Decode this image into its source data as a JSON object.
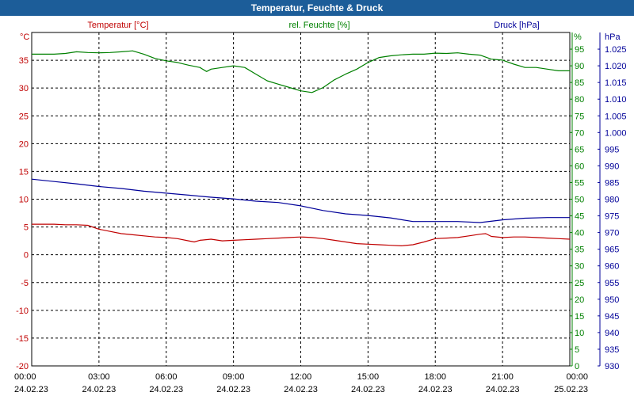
{
  "title": "Temperatur, Feuchte & Druck",
  "chart_data": {
    "type": "line",
    "title": "Temperatur, Feuchte & Druck",
    "grid": true,
    "x": {
      "range_hours": [
        0,
        24
      ],
      "ticks": [
        {
          "h": 0,
          "time": "00:00",
          "date": "24.02.23"
        },
        {
          "h": 3,
          "time": "03:00",
          "date": "24.02.23"
        },
        {
          "h": 6,
          "time": "06:00",
          "date": "24.02.23"
        },
        {
          "h": 9,
          "time": "09:00",
          "date": "24.02.23"
        },
        {
          "h": 12,
          "time": "12:00",
          "date": "24.02.23"
        },
        {
          "h": 15,
          "time": "15:00",
          "date": "24.02.23"
        },
        {
          "h": 18,
          "time": "18:00",
          "date": "24.02.23"
        },
        {
          "h": 21,
          "time": "21:00",
          "date": "24.02.23"
        },
        {
          "h": 24,
          "time": "00:00",
          "date": "25.02.23"
        }
      ]
    },
    "axes": {
      "temperature": {
        "label": "Temperatur [°C]",
        "unit": "°C",
        "min": -20,
        "max": 40,
        "ticks": [
          35,
          30,
          25,
          20,
          15,
          10,
          5,
          0,
          -5,
          -10,
          -15,
          -20
        ],
        "color": "#c00000"
      },
      "humidity": {
        "label": "rel. Feuchte [%]",
        "unit": "%",
        "min": 0,
        "max": 100,
        "ticks": [
          95,
          90,
          85,
          80,
          75,
          70,
          65,
          60,
          55,
          50,
          45,
          40,
          35,
          30,
          25,
          20,
          15,
          10,
          5,
          0
        ],
        "color": "#008000"
      },
      "pressure": {
        "label": "Druck [hPa]",
        "unit": "hPa",
        "min": 930,
        "max": 1030,
        "ticks": [
          "1.025",
          "1.020",
          "1.015",
          "1.010",
          "1.005",
          "1.000",
          "995",
          "990",
          "985",
          "980",
          "975",
          "970",
          "965",
          "960",
          "955",
          "950",
          "945",
          "940",
          "935",
          "930"
        ],
        "color": "#000099"
      }
    },
    "series": [
      {
        "name": "Temperatur [°C]",
        "axis": "temperature",
        "color": "#c00000",
        "x": [
          0,
          0.5,
          1,
          1.5,
          2,
          2.5,
          3,
          3.5,
          4,
          4.5,
          5,
          5.5,
          6,
          6.5,
          7,
          7.25,
          7.5,
          8,
          8.5,
          9,
          9.5,
          10,
          10.5,
          11,
          11.5,
          12,
          12.5,
          13,
          13.5,
          14,
          14.5,
          15,
          15.5,
          16,
          16.5,
          17,
          17.5,
          18,
          18.5,
          19,
          19.5,
          20,
          20.25,
          20.5,
          21,
          21.5,
          22,
          22.5,
          23,
          23.5,
          24
        ],
        "values": [
          5.5,
          5.5,
          5.5,
          5.4,
          5.4,
          5.3,
          4.6,
          4.2,
          3.8,
          3.6,
          3.4,
          3.2,
          3.1,
          2.9,
          2.5,
          2.3,
          2.6,
          2.8,
          2.5,
          2.6,
          2.7,
          2.8,
          2.9,
          3,
          3.1,
          3.2,
          3.1,
          2.9,
          2.6,
          2.3,
          2,
          1.9,
          1.8,
          1.7,
          1.6,
          1.8,
          2.3,
          2.9,
          3,
          3.1,
          3.4,
          3.7,
          3.8,
          3.3,
          3.1,
          3.2,
          3.2,
          3.1,
          3,
          2.9,
          2.8
        ]
      },
      {
        "name": "rel. Feuchte [%]",
        "axis": "humidity",
        "color": "#008000",
        "x": [
          0,
          0.5,
          1,
          1.5,
          2,
          2.5,
          3,
          3.5,
          4,
          4.5,
          5,
          5.5,
          6,
          6.5,
          7,
          7.5,
          7.8,
          8,
          8.5,
          9,
          9.5,
          10,
          10.5,
          11,
          11.5,
          12,
          12.5,
          13,
          13.5,
          14,
          14.5,
          15,
          15.5,
          16,
          16.5,
          17,
          17.5,
          18,
          18.5,
          19,
          19.5,
          20,
          20.5,
          21,
          21.5,
          22,
          22.5,
          23,
          23.5,
          24
        ],
        "values": [
          93.5,
          93.5,
          93.5,
          93.7,
          94.2,
          94,
          93.9,
          94,
          94.2,
          94.5,
          93.5,
          92.2,
          91.5,
          91,
          90.2,
          89.5,
          88.3,
          89,
          89.5,
          90,
          89.5,
          87.5,
          85.5,
          84.5,
          83.5,
          82.5,
          82,
          83.5,
          85.8,
          87.5,
          89,
          91,
          92.5,
          93,
          93.3,
          93.5,
          93.5,
          93.8,
          93.7,
          93.9,
          93.5,
          93.2,
          92,
          91.7,
          90.5,
          89.5,
          89.5,
          89,
          88.5,
          88.5
        ]
      },
      {
        "name": "Druck [hPa]",
        "axis": "pressure",
        "color": "#000099",
        "x": [
          0,
          1,
          2,
          3,
          4,
          5,
          6,
          7,
          8,
          9,
          10,
          11,
          12,
          13,
          14,
          15,
          16,
          17,
          18,
          19,
          20,
          21,
          22,
          23,
          24
        ],
        "values": [
          986,
          985.3,
          984.6,
          983.8,
          983.2,
          982.4,
          981.8,
          981.2,
          980.6,
          980.1,
          979.4,
          979,
          978,
          976.6,
          975.6,
          975.1,
          974.4,
          973.3,
          973.3,
          973.3,
          973,
          973.8,
          974.3,
          974.5,
          974.5
        ]
      }
    ]
  }
}
